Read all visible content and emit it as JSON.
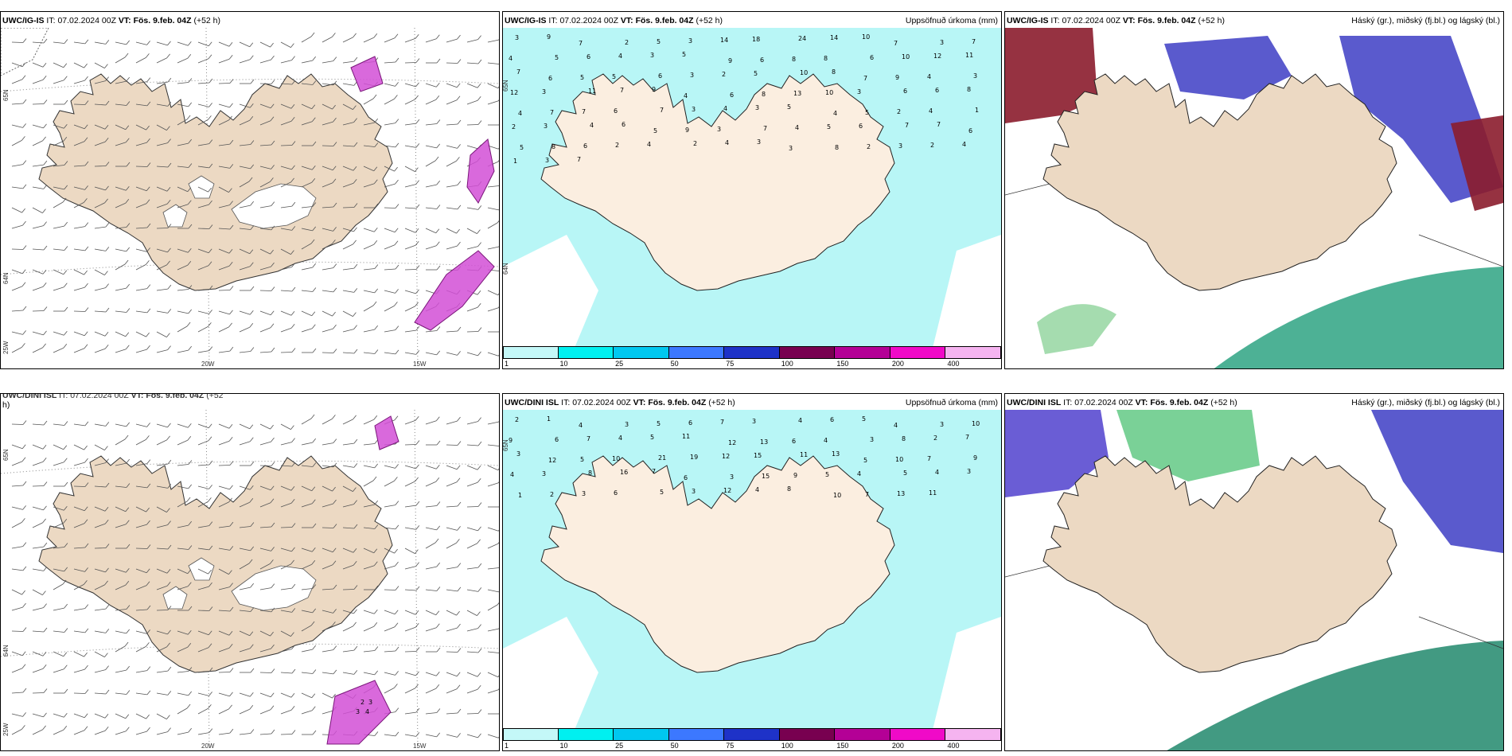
{
  "panels": [
    {
      "id": "p1",
      "model": "UWC/IG-IS",
      "it_label": "IT:",
      "it_value": "07.02.2024 00Z",
      "vt_label": "VT:",
      "vt_value": "Fös. 9.feb. 04Z",
      "lead": "(+52 h)",
      "right_title": "",
      "type": "wind",
      "lat_labels": [
        "65N",
        "64N"
      ],
      "lon_labels": [
        "25W",
        "20W",
        "15W"
      ]
    },
    {
      "id": "p2",
      "model": "UWC/IG-IS",
      "it_label": "IT:",
      "it_value": "07.02.2024 00Z",
      "vt_label": "VT:",
      "vt_value": "Fös. 9.feb. 04Z",
      "lead": "(+52 h)",
      "right_title": "Uppsöfnuð úrkoma (mm)",
      "type": "precip",
      "lat_labels": [
        "65N",
        "64N"
      ],
      "lon_labels": []
    },
    {
      "id": "p3",
      "model": "UWC/IG-IS",
      "it_label": "IT:",
      "it_value": "07.02.2024 00Z",
      "vt_label": "VT:",
      "vt_value": "Fös. 9.feb. 04Z",
      "lead": "(+52 h)",
      "right_title": "Háský (gr.), miðský (fj.bl.) og lágský (bl.)",
      "type": "cloud",
      "lat_labels": [],
      "lon_labels": []
    },
    {
      "id": "p4",
      "model": "UWC/DINI ISL",
      "it_label": "IT:",
      "it_value": "07.02.2024 00Z",
      "vt_label": "VT:",
      "vt_value": "Fös. 9.feb. 04Z",
      "lead": "(+52",
      "lead2": "h)",
      "right_title": "",
      "type": "wind",
      "lat_labels": [
        "65N",
        "64N"
      ],
      "lon_labels": [
        "25W",
        "20W",
        "15W"
      ]
    },
    {
      "id": "p5",
      "model": "UWC/DINI ISL",
      "it_label": "IT:",
      "it_value": "07.02.2024 00Z",
      "vt_label": "VT:",
      "vt_value": "Fös. 9.feb. 04Z",
      "lead": "(+52 h)",
      "right_title": "Uppsöfnuð úrkoma (mm)",
      "type": "precip",
      "lat_labels": [
        "65N"
      ],
      "lon_labels": []
    },
    {
      "id": "p6",
      "model": "UWC/DINI ISL",
      "it_label": "IT:",
      "it_value": "07.02.2024 00Z",
      "vt_label": "VT:",
      "vt_value": "Fös. 9.feb. 04Z",
      "lead": "(+52 h)",
      "right_title": "Háský (gr.), miðský (fj.bl.) og lágský (bl.)",
      "type": "cloud",
      "lat_labels": [],
      "lon_labels": []
    }
  ],
  "colorbar": {
    "labels": [
      "1",
      "10",
      "25",
      "50",
      "75",
      "100",
      "150",
      "200",
      "400"
    ],
    "colors": [
      "#c4f8f8",
      "#00f0f0",
      "#00c8f0",
      "#3c78ff",
      "#1e32c8",
      "#780050",
      "#b40096",
      "#f00ac8",
      "#f5b4f0"
    ]
  },
  "precip_values_top": [
    "3",
    "9",
    "7",
    "2",
    "5",
    "3",
    "14",
    "18",
    "24",
    "14",
    "10",
    "7",
    "3",
    "7",
    "4",
    "5",
    "6",
    "4",
    "3",
    "5",
    "9",
    "6",
    "8",
    "8",
    "6",
    "10",
    "12",
    "11",
    "7",
    "6",
    "5",
    "5",
    "6",
    "3",
    "2",
    "5",
    "10",
    "8",
    "7",
    "9",
    "4",
    "3",
    "12",
    "3",
    "11",
    "7",
    "9",
    "4",
    "6",
    "8",
    "13",
    "10",
    "3",
    "6",
    "6",
    "8",
    "4",
    "7",
    "7",
    "6",
    "7",
    "3",
    "4",
    "3",
    "5",
    "4",
    "5",
    "2",
    "4",
    "1",
    "2",
    "3",
    "4",
    "6",
    "5",
    "9",
    "3",
    "7",
    "4",
    "5",
    "6",
    "7",
    "7",
    "6",
    "5",
    "8",
    "6",
    "2",
    "4",
    "2",
    "4",
    "3",
    "3",
    "8",
    "2",
    "3",
    "2",
    "4",
    "1",
    "3",
    "7"
  ],
  "precip_values_bottom": [
    "2",
    "1",
    "4",
    "3",
    "5",
    "6",
    "7",
    "3",
    "4",
    "6",
    "5",
    "4",
    "3",
    "10",
    "9",
    "6",
    "7",
    "4",
    "5",
    "11",
    "12",
    "13",
    "6",
    "4",
    "3",
    "8",
    "2",
    "7",
    "3",
    "12",
    "5",
    "10",
    "21",
    "19",
    "12",
    "15",
    "11",
    "13",
    "5",
    "10",
    "7",
    "9",
    "4",
    "3",
    "8",
    "16",
    "7",
    "6",
    "3",
    "15",
    "9",
    "5",
    "4",
    "5",
    "4",
    "3",
    "1",
    "2",
    "3",
    "6",
    "5",
    "3",
    "12",
    "4",
    "8",
    "10",
    "7",
    "13",
    "11"
  ],
  "wind_labels_bottom": [
    "2",
    "3",
    "3",
    "4"
  ]
}
